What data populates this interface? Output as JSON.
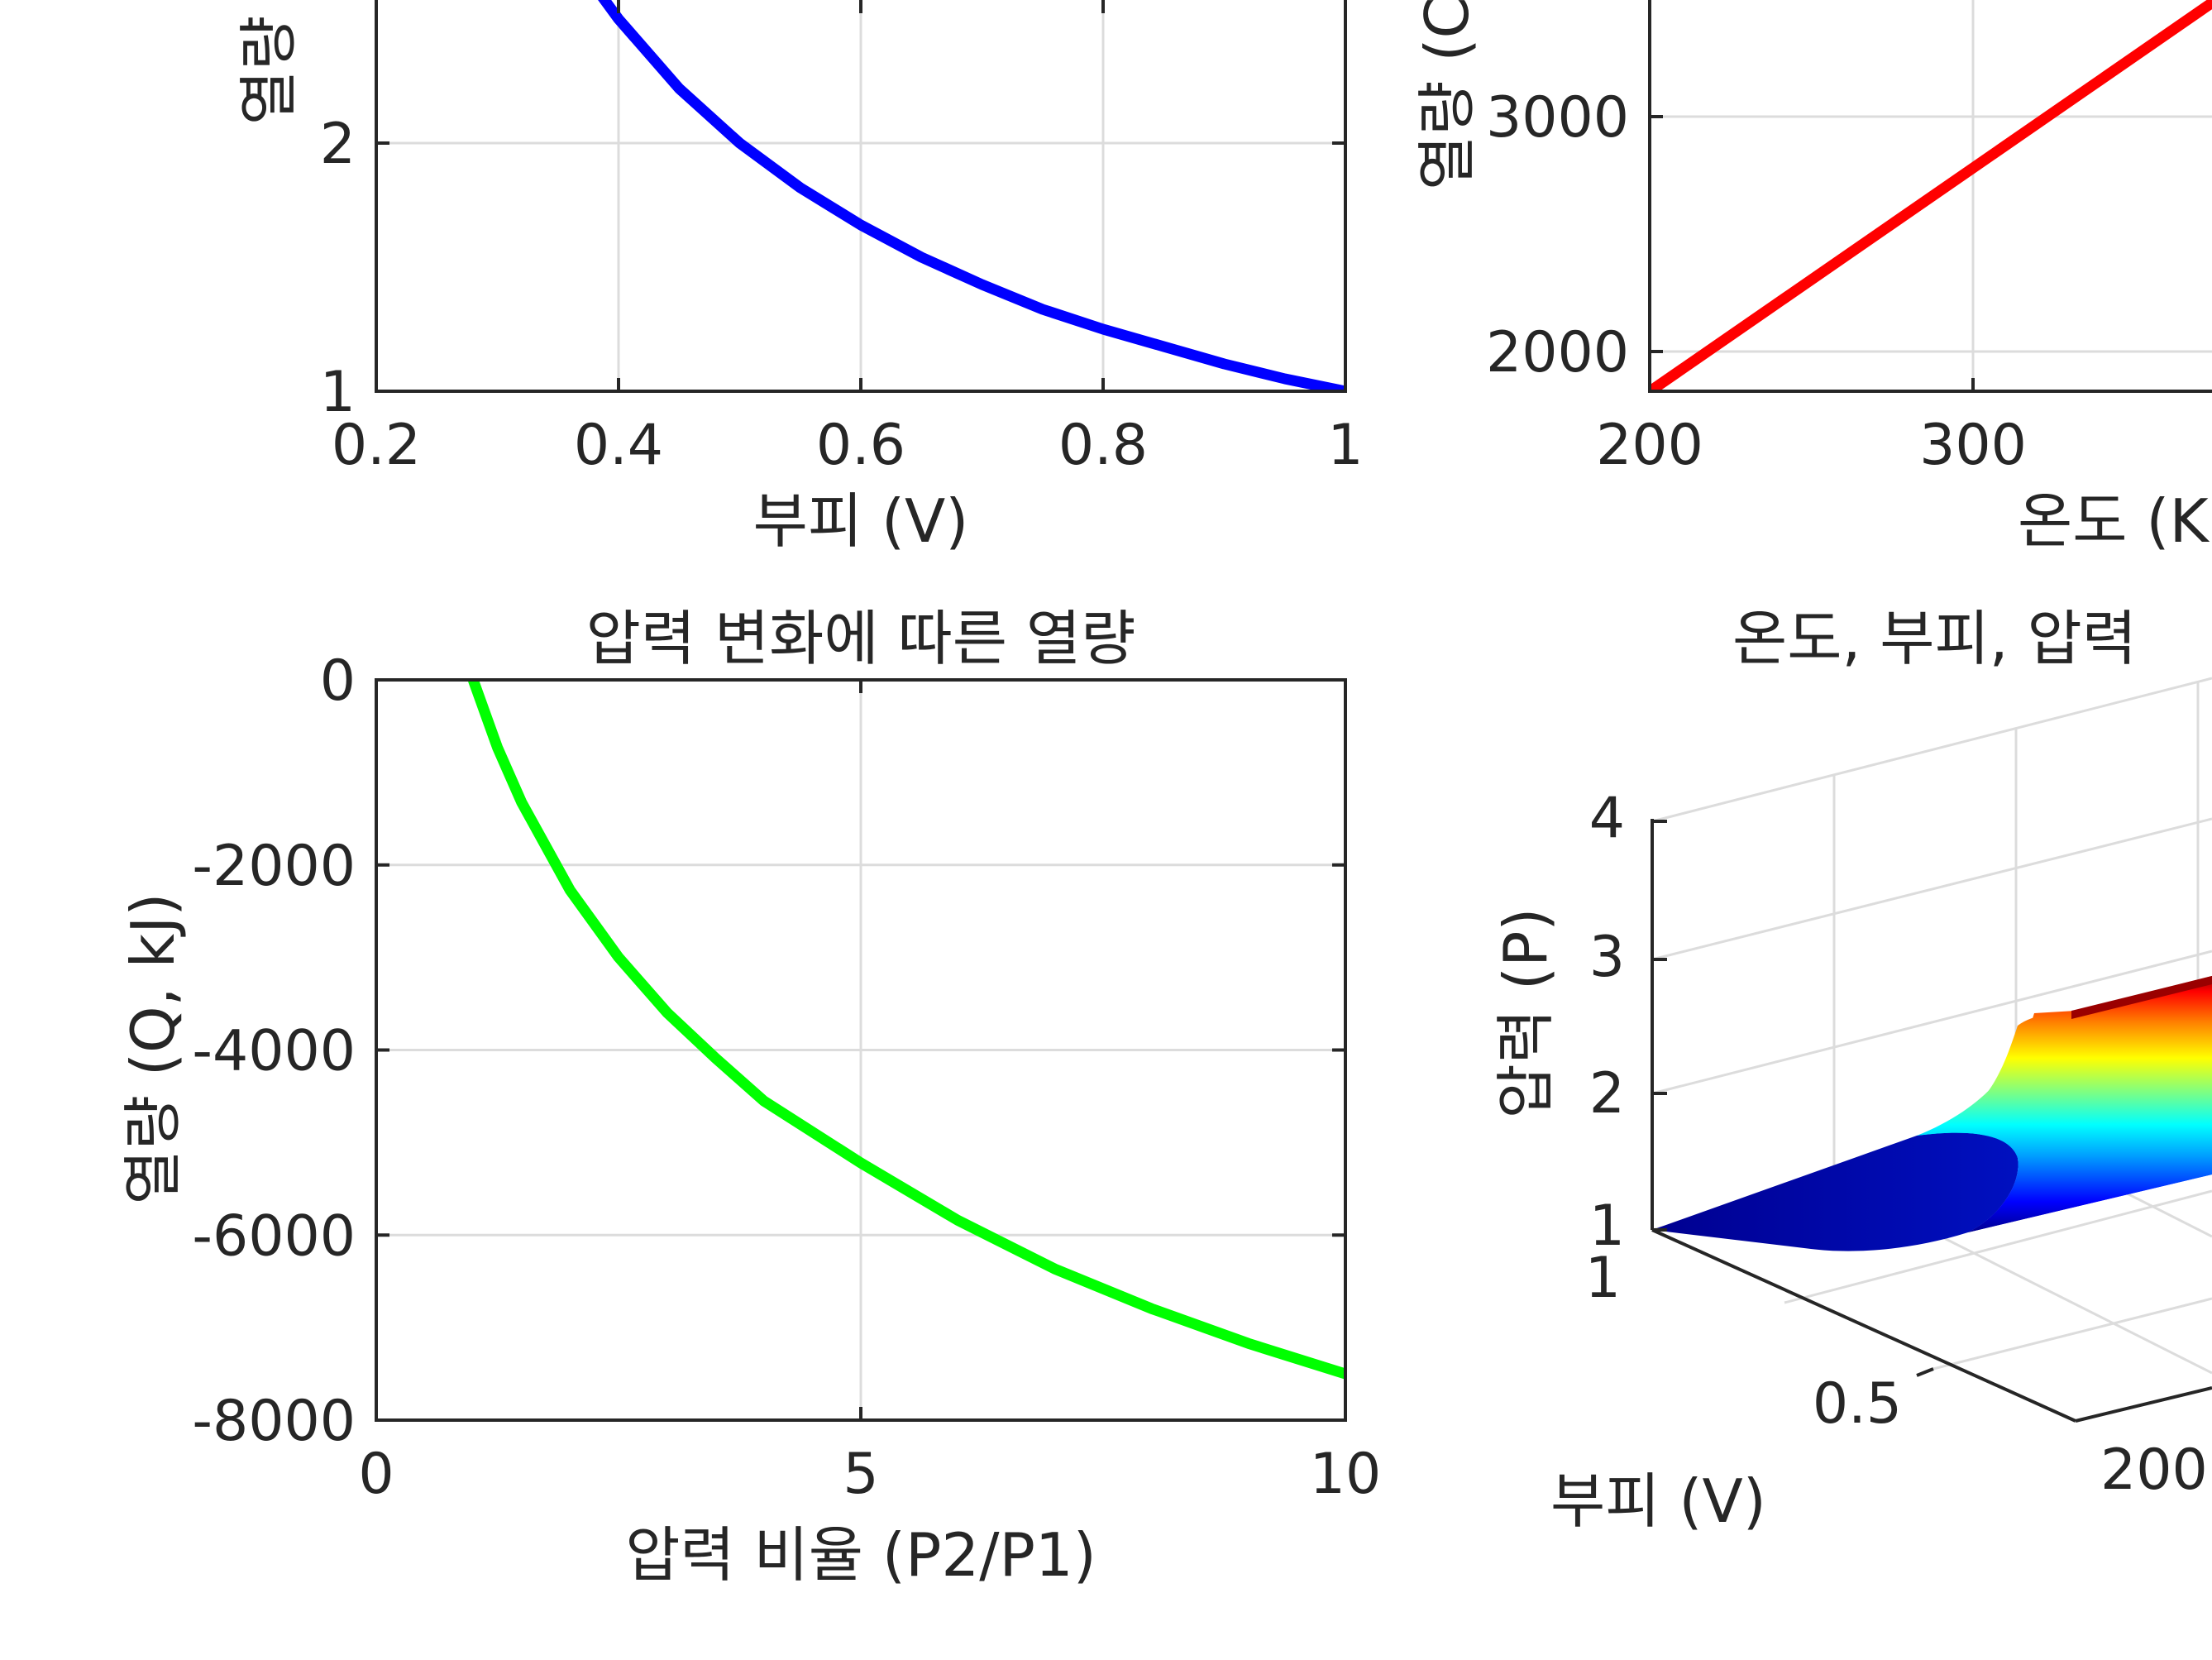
{
  "chart_data": [
    {
      "type": "line",
      "title": "",
      "xlabel": "부피 (V)",
      "ylabel": "열량",
      "xlim": [
        0.2,
        1
      ],
      "ylim": [
        1,
        2.9
      ],
      "xticks": [
        "0.2",
        "0.4",
        "0.6",
        "0.8",
        "1"
      ],
      "yticks": [
        "1",
        "2"
      ],
      "grid": true,
      "series": [
        {
          "color": "#0000ff",
          "x": [
            0.37,
            0.4,
            0.45,
            0.5,
            0.55,
            0.6,
            0.65,
            0.7,
            0.75,
            0.8,
            0.85,
            0.9,
            0.95,
            1.0
          ],
          "y": [
            2.7,
            2.5,
            2.22,
            2.0,
            1.82,
            1.67,
            1.54,
            1.43,
            1.33,
            1.25,
            1.18,
            1.11,
            1.05,
            1.0
          ]
        }
      ]
    },
    {
      "type": "line",
      "title": "",
      "xlabel": "온도 (K",
      "ylabel": "열량 (C",
      "xlim": [
        200,
        375
      ],
      "ylim": [
        1830,
        3500
      ],
      "xticks": [
        "200",
        "300"
      ],
      "yticks": [
        "2000",
        "3000"
      ],
      "grid": true,
      "series": [
        {
          "color": "#ff0000",
          "x": [
            200,
            375
          ],
          "y": [
            1830,
            3495
          ]
        }
      ]
    },
    {
      "type": "line",
      "title": "압력 변화에 따른 열량",
      "xlabel": "압력 비율 (P2/P1)",
      "ylabel": "열량 (Q, kJ)",
      "xlim": [
        0,
        10
      ],
      "ylim": [
        -8000,
        0
      ],
      "xticks": [
        "0",
        "5",
        "10"
      ],
      "yticks": [
        "0",
        "-2000",
        "-4000",
        "-6000",
        "-8000"
      ],
      "grid": true,
      "series": [
        {
          "color": "#00ff00",
          "x": [
            1,
            1.25,
            1.5,
            2,
            2.5,
            3,
            3.5,
            4,
            5,
            6,
            7,
            8,
            9,
            10
          ],
          "y": [
            0,
            -729,
            -1324,
            -2273,
            -2998,
            -3595,
            -4087,
            -4551,
            -5220,
            -5840,
            -6365,
            -6795,
            -7171,
            -7500
          ]
        }
      ]
    },
    {
      "type": "surface",
      "title": "온도, 부피, 압력",
      "xlabel": "부피 (V)",
      "ylabel": "",
      "zlabel": "압력 (P)",
      "zticks": [
        "1",
        "2",
        "3",
        "4"
      ],
      "xticks": [
        "1",
        "0.5"
      ],
      "yticks": [
        "200"
      ],
      "grid": true,
      "colormap": "jet"
    }
  ]
}
